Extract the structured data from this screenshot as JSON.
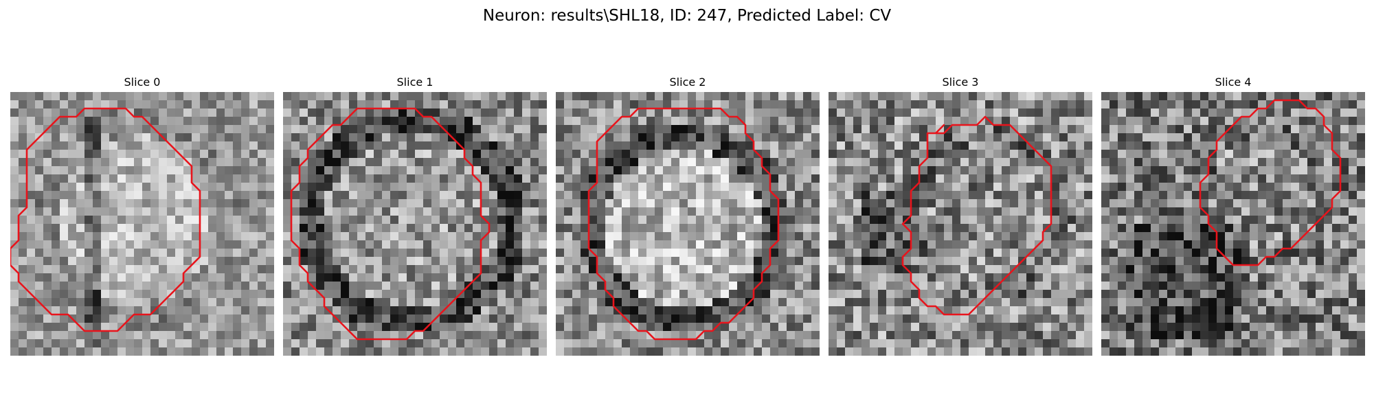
{
  "figure": {
    "title": "Neuron: results\\SHL18, ID: 247, Predicted Label: CV"
  },
  "slices": [
    {
      "title": "Slice 0",
      "outline_color": "#e8141c"
    },
    {
      "title": "Slice 1",
      "outline_color": "#e8141c"
    },
    {
      "title": "Slice 2",
      "outline_color": "#e8141c"
    },
    {
      "title": "Slice 3",
      "outline_color": "#e8141c"
    },
    {
      "title": "Slice 4",
      "outline_color": "#e8141c"
    }
  ]
}
